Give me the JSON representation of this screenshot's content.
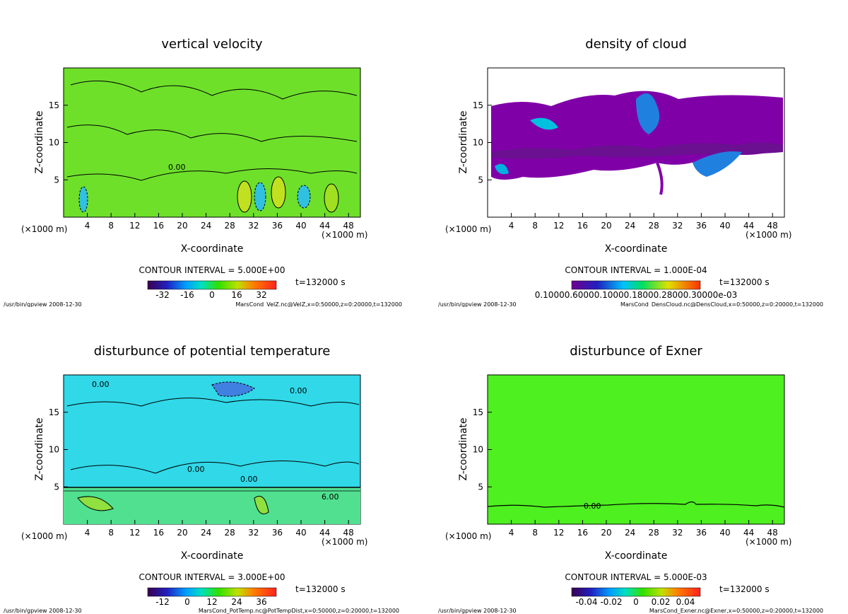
{
  "chart_data": [
    {
      "type": "heatmap",
      "title": "vertical velocity",
      "xlabel": "X-coordinate",
      "ylabel": "Z-coordinate",
      "x_unit": "(×1000 m)",
      "x_ticks": [
        "4",
        "8",
        "12",
        "16",
        "20",
        "24",
        "28",
        "32",
        "36",
        "40",
        "44",
        "48"
      ],
      "y_ticks": [
        "5",
        "10",
        "15"
      ],
      "xlim": [
        0,
        50
      ],
      "ylim": [
        0,
        20
      ],
      "contour_interval": "CONTOUR INTERVAL = 5.000E+00",
      "time": "t=132000 s",
      "colorbar_ticks": [
        "-32",
        "-16",
        "0",
        "16",
        "32"
      ],
      "contour_labels": [
        "0.00"
      ],
      "footer_left": "/usr/bin/gpview  2008-12-30",
      "footer_right": "MarsCond_VelZ.nc@VelZ,x=0:50000,z=0:20000,t=132000"
    },
    {
      "type": "heatmap",
      "title": "density of cloud",
      "xlabel": "X-coordinate",
      "ylabel": "Z-coordinate",
      "x_unit": "(×1000 m)",
      "x_ticks": [
        "4",
        "8",
        "12",
        "16",
        "20",
        "24",
        "28",
        "32",
        "36",
        "40",
        "44",
        "48"
      ],
      "y_ticks": [
        "5",
        "10",
        "15"
      ],
      "xlim": [
        0,
        50
      ],
      "ylim": [
        0,
        20
      ],
      "contour_interval": "CONTOUR INTERVAL = 1.000E-04",
      "time": "t=132000 s",
      "colorbar_ticks_text": "0.10000.60000.10000.18000.28000.30000e-03",
      "contour_labels": [],
      "footer_left": "/usr/bin/gpview  2008-12-30",
      "footer_right": "MarsCond_DensCloud.nc@DensCloud,x=0:50000,z=0:20000,t=132000"
    },
    {
      "type": "heatmap",
      "title": "disturbunce of potential temperature",
      "xlabel": "X-coordinate",
      "ylabel": "Z-coordinate",
      "x_unit": "(×1000 m)",
      "x_ticks": [
        "4",
        "8",
        "12",
        "16",
        "20",
        "24",
        "28",
        "32",
        "36",
        "40",
        "44",
        "48"
      ],
      "y_ticks": [
        "5",
        "10",
        "15"
      ],
      "xlim": [
        0,
        50
      ],
      "ylim": [
        0,
        20
      ],
      "contour_interval": "CONTOUR INTERVAL = 3.000E+00",
      "time": "t=132000 s",
      "colorbar_ticks": [
        "-12",
        "0",
        "12",
        "24",
        "36"
      ],
      "contour_labels": [
        "0.00",
        "0.00",
        "0.00",
        "0.00",
        "6.00"
      ],
      "footer_left": "/usr/bin/gpview  2008-12-30",
      "footer_right": "MarsCond_PotTemp.nc@PotTempDist,x=0:50000,z=0:20000,t=132000"
    },
    {
      "type": "heatmap",
      "title": "disturbunce of Exner",
      "xlabel": "X-coordinate",
      "ylabel": "Z-coordinate",
      "x_unit": "(×1000 m)",
      "x_ticks": [
        "4",
        "8",
        "12",
        "16",
        "20",
        "24",
        "28",
        "32",
        "36",
        "40",
        "44",
        "48"
      ],
      "y_ticks": [
        "5",
        "10",
        "15"
      ],
      "xlim": [
        0,
        50
      ],
      "ylim": [
        0,
        20
      ],
      "contour_interval": "CONTOUR INTERVAL = 5.000E-03",
      "time": "t=132000 s",
      "colorbar_ticks": [
        "-0.04",
        "-0.02",
        "0",
        "0.02",
        "0.04"
      ],
      "contour_labels": [
        "0.00"
      ],
      "footer_left": "/usr/bin/gpview  2008-12-30",
      "footer_right": "MarsCond_Exner.nc@Exner,x=0:50000,z=0:20000,t=132000"
    }
  ]
}
